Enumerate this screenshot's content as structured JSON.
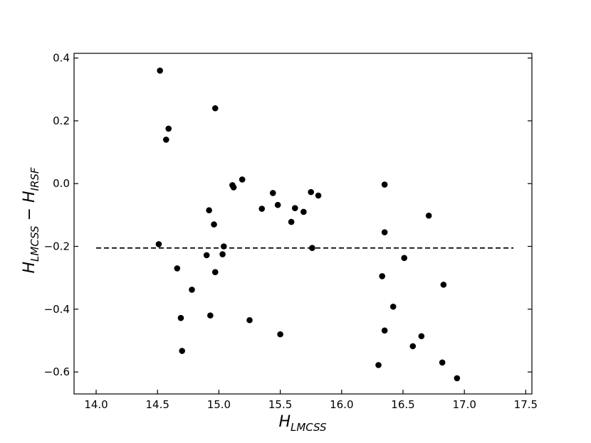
{
  "chart_data": {
    "type": "scatter",
    "xlabel": {
      "main": "H",
      "sub": "LMCSS"
    },
    "ylabel": {
      "parts": [
        {
          "main": "H",
          "sub": "LMCSS"
        },
        {
          "op": " − "
        },
        {
          "main": "H",
          "sub": "IRSF"
        }
      ]
    },
    "xlim": [
      13.82,
      17.55
    ],
    "ylim": [
      -0.67,
      0.415
    ],
    "x_ticks": [
      14.0,
      14.5,
      15.0,
      15.5,
      16.0,
      16.5,
      17.0,
      17.5
    ],
    "x_tick_labels": [
      "14.0",
      "14.5",
      "15.0",
      "15.5",
      "16.0",
      "16.5",
      "17.0",
      "17.5"
    ],
    "y_ticks": [
      0.4,
      0.2,
      0.0,
      -0.2,
      -0.4,
      -0.6
    ],
    "y_tick_labels": [
      "0.4",
      "0.2",
      "0.0",
      "−0.2",
      "−0.4",
      "−0.6"
    ],
    "grid": false,
    "legend": null,
    "marker_color": "#000000",
    "reference_line": {
      "y": -0.205,
      "x_range": [
        14.0,
        17.4
      ],
      "style": "dashed",
      "color": "#000000"
    },
    "points": [
      {
        "x": 14.52,
        "y": 0.36
      },
      {
        "x": 14.97,
        "y": 0.24
      },
      {
        "x": 14.59,
        "y": 0.175
      },
      {
        "x": 14.57,
        "y": 0.14
      },
      {
        "x": 15.19,
        "y": 0.013
      },
      {
        "x": 15.11,
        "y": -0.005
      },
      {
        "x": 15.12,
        "y": -0.012
      },
      {
        "x": 15.44,
        "y": -0.03
      },
      {
        "x": 15.75,
        "y": -0.027
      },
      {
        "x": 15.81,
        "y": -0.038
      },
      {
        "x": 15.48,
        "y": -0.068
      },
      {
        "x": 15.62,
        "y": -0.078
      },
      {
        "x": 15.35,
        "y": -0.08
      },
      {
        "x": 14.92,
        "y": -0.085
      },
      {
        "x": 15.69,
        "y": -0.09
      },
      {
        "x": 15.59,
        "y": -0.122
      },
      {
        "x": 14.96,
        "y": -0.13
      },
      {
        "x": 15.04,
        "y": -0.2
      },
      {
        "x": 14.51,
        "y": -0.193
      },
      {
        "x": 15.76,
        "y": -0.205
      },
      {
        "x": 15.03,
        "y": -0.225
      },
      {
        "x": 14.9,
        "y": -0.228
      },
      {
        "x": 14.66,
        "y": -0.27
      },
      {
        "x": 14.97,
        "y": -0.282
      },
      {
        "x": 14.78,
        "y": -0.338
      },
      {
        "x": 14.93,
        "y": -0.42
      },
      {
        "x": 14.69,
        "y": -0.428
      },
      {
        "x": 15.25,
        "y": -0.435
      },
      {
        "x": 15.5,
        "y": -0.48
      },
      {
        "x": 14.7,
        "y": -0.533
      },
      {
        "x": 16.35,
        "y": -0.003
      },
      {
        "x": 16.71,
        "y": -0.102
      },
      {
        "x": 16.35,
        "y": -0.155
      },
      {
        "x": 16.51,
        "y": -0.237
      },
      {
        "x": 16.33,
        "y": -0.295
      },
      {
        "x": 16.83,
        "y": -0.322
      },
      {
        "x": 16.42,
        "y": -0.392
      },
      {
        "x": 16.35,
        "y": -0.468
      },
      {
        "x": 16.65,
        "y": -0.486
      },
      {
        "x": 16.58,
        "y": -0.518
      },
      {
        "x": 16.82,
        "y": -0.57
      },
      {
        "x": 16.3,
        "y": -0.578
      },
      {
        "x": 16.94,
        "y": -0.62
      }
    ]
  }
}
